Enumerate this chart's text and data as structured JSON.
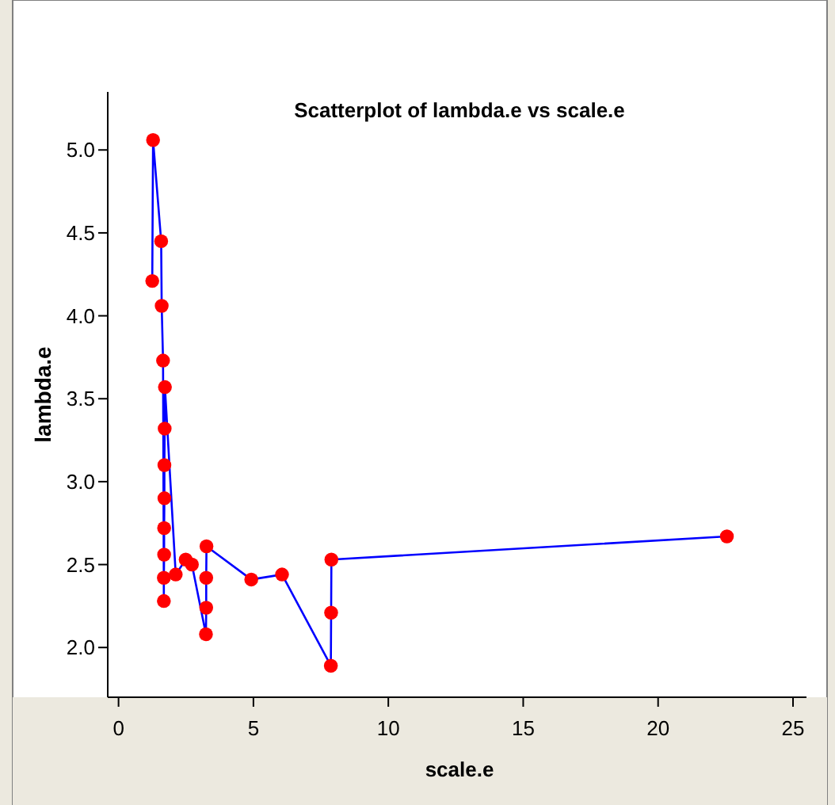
{
  "chart_data": {
    "type": "line",
    "title": "Scatterplot of lambda.e vs scale.e",
    "xlabel": "scale.e",
    "ylabel": "lambda.e",
    "xlim": [
      -0.4,
      25.5
    ],
    "xticks": [
      0,
      5,
      10,
      15,
      20,
      25
    ],
    "ylim": [
      1.7,
      5.35
    ],
    "yticks": [
      {
        "value": 2,
        "label": "2.0"
      },
      {
        "value": 2.5,
        "label": "2.5"
      },
      {
        "value": 3,
        "label": "3.0"
      },
      {
        "value": 3.5,
        "label": "3.5"
      },
      {
        "value": 4,
        "label": "4.0"
      },
      {
        "value": 4.5,
        "label": "4.5"
      },
      {
        "value": 5,
        "label": "5.0"
      }
    ],
    "grid": false,
    "series": [
      {
        "color": "#0000ff",
        "marker": "circle",
        "colors": [
          "#ff0000",
          "#ff0000",
          "#ff0000",
          "#ff0000",
          "#ff0000",
          "#ff0000",
          "#ff0000",
          "#ff0000",
          "#ff0000",
          "#ff0000",
          "#ff0000",
          "#ff0000",
          "#ff0000",
          "#ff0000",
          "#ff0000",
          "#ff0000",
          "#ff0000",
          "#ff0000",
          "#ff0000",
          "#ff0000",
          "#ff0000",
          "#ff0000",
          "#ff0000",
          "#ff0000",
          "#ff0000",
          "#ff0000"
        ],
        "x": [
          1.25,
          1.28,
          1.58,
          1.6,
          1.65,
          1.68,
          1.68,
          1.69,
          1.69,
          1.7,
          1.7,
          1.71,
          1.72,
          2.12,
          2.49,
          2.72,
          3.24,
          3.25,
          3.25,
          3.26,
          4.92,
          6.06,
          7.87,
          7.88,
          7.89,
          22.55
        ],
        "values": [
          4.21,
          5.06,
          4.45,
          4.06,
          3.73,
          2.28,
          2.42,
          2.56,
          2.72,
          2.9,
          3.1,
          3.32,
          3.57,
          2.44,
          2.53,
          2.5,
          2.08,
          2.24,
          2.42,
          2.61,
          2.41,
          2.44,
          1.89,
          2.21,
          2.53,
          2.67
        ]
      }
    ]
  }
}
